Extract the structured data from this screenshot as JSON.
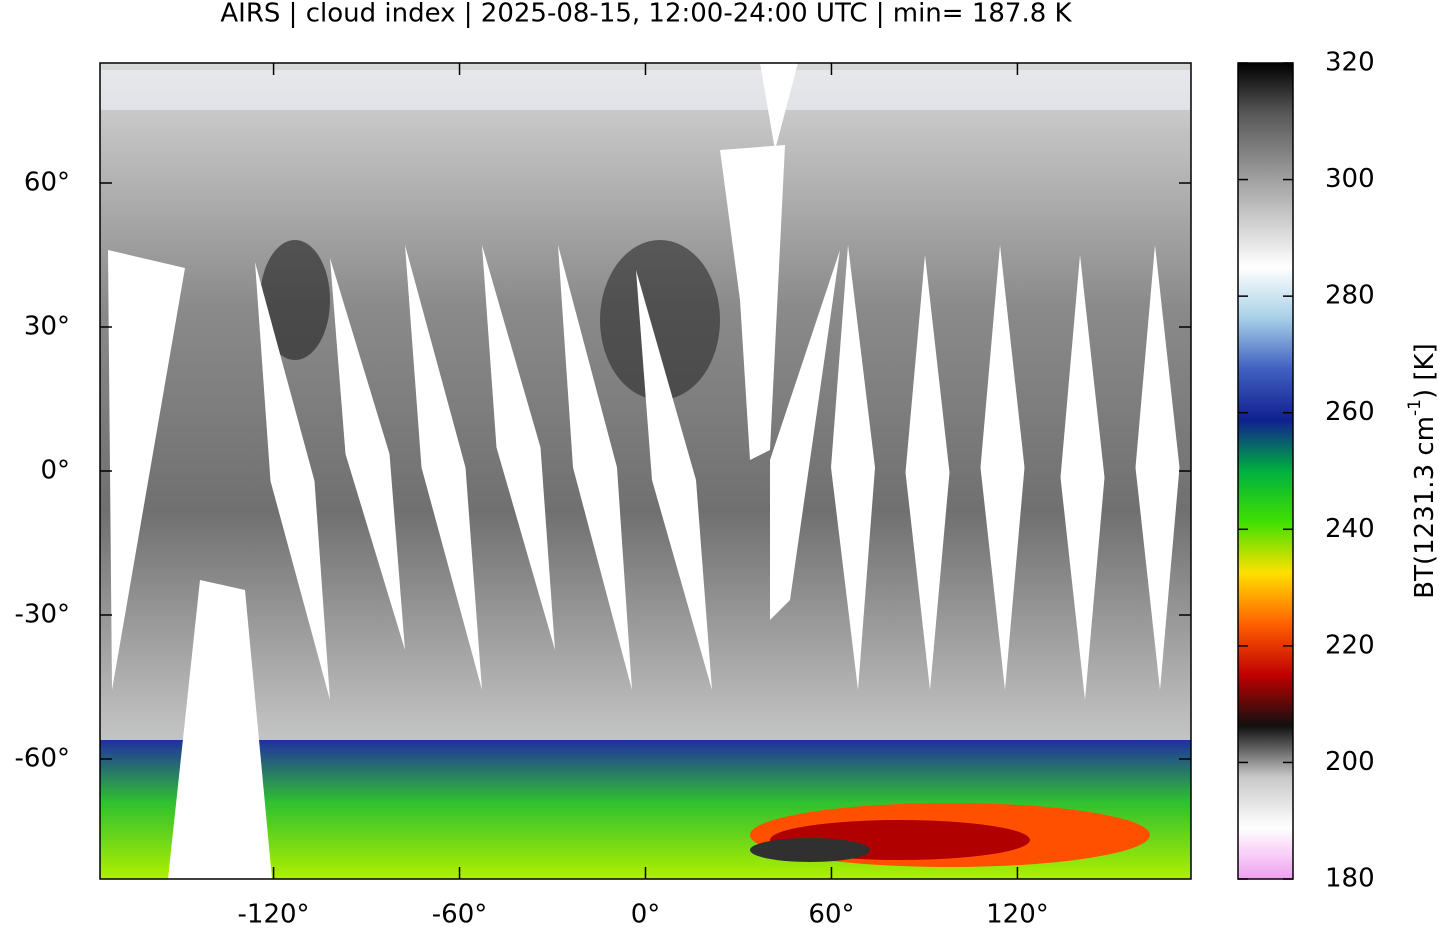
{
  "chart_data": {
    "type": "map",
    "title": "AIRS | cloud index | 2025-08-15, 12:00-24:00 UTC | min= 187.8 K",
    "xlim": [
      -176,
      176
    ],
    "ylim": [
      -85,
      85
    ],
    "xticks": [
      {
        "value": -120,
        "label": "-120°"
      },
      {
        "value": -60,
        "label": "-60°"
      },
      {
        "value": 0,
        "label": "0°"
      },
      {
        "value": 60,
        "label": "60°"
      },
      {
        "value": 120,
        "label": "120°"
      }
    ],
    "yticks": [
      {
        "value": 60,
        "label": "60°"
      },
      {
        "value": 30,
        "label": "30°"
      },
      {
        "value": 0,
        "label": "0°"
      },
      {
        "value": -30,
        "label": "-30°"
      },
      {
        "value": -60,
        "label": "-60°"
      }
    ],
    "colorbar": {
      "label": {
        "text": "BT(1231.3 cm",
        "superscript": "-1",
        "suffix": ") [K]"
      },
      "lim": [
        180,
        320
      ],
      "ticks": [
        180,
        200,
        220,
        240,
        260,
        280,
        300,
        320
      ],
      "colors": [
        "#f0a0f0",
        "#ffffff",
        "#c8c8c8",
        "#101010",
        "#c00000",
        "#ff6000",
        "#ffe000",
        "#40e000",
        "#00b040",
        "#102090",
        "#4060c0",
        "#a8d0e8",
        "#ffffff",
        "#c8c8c8",
        "#909090",
        "#585858",
        "#000000"
      ]
    }
  }
}
